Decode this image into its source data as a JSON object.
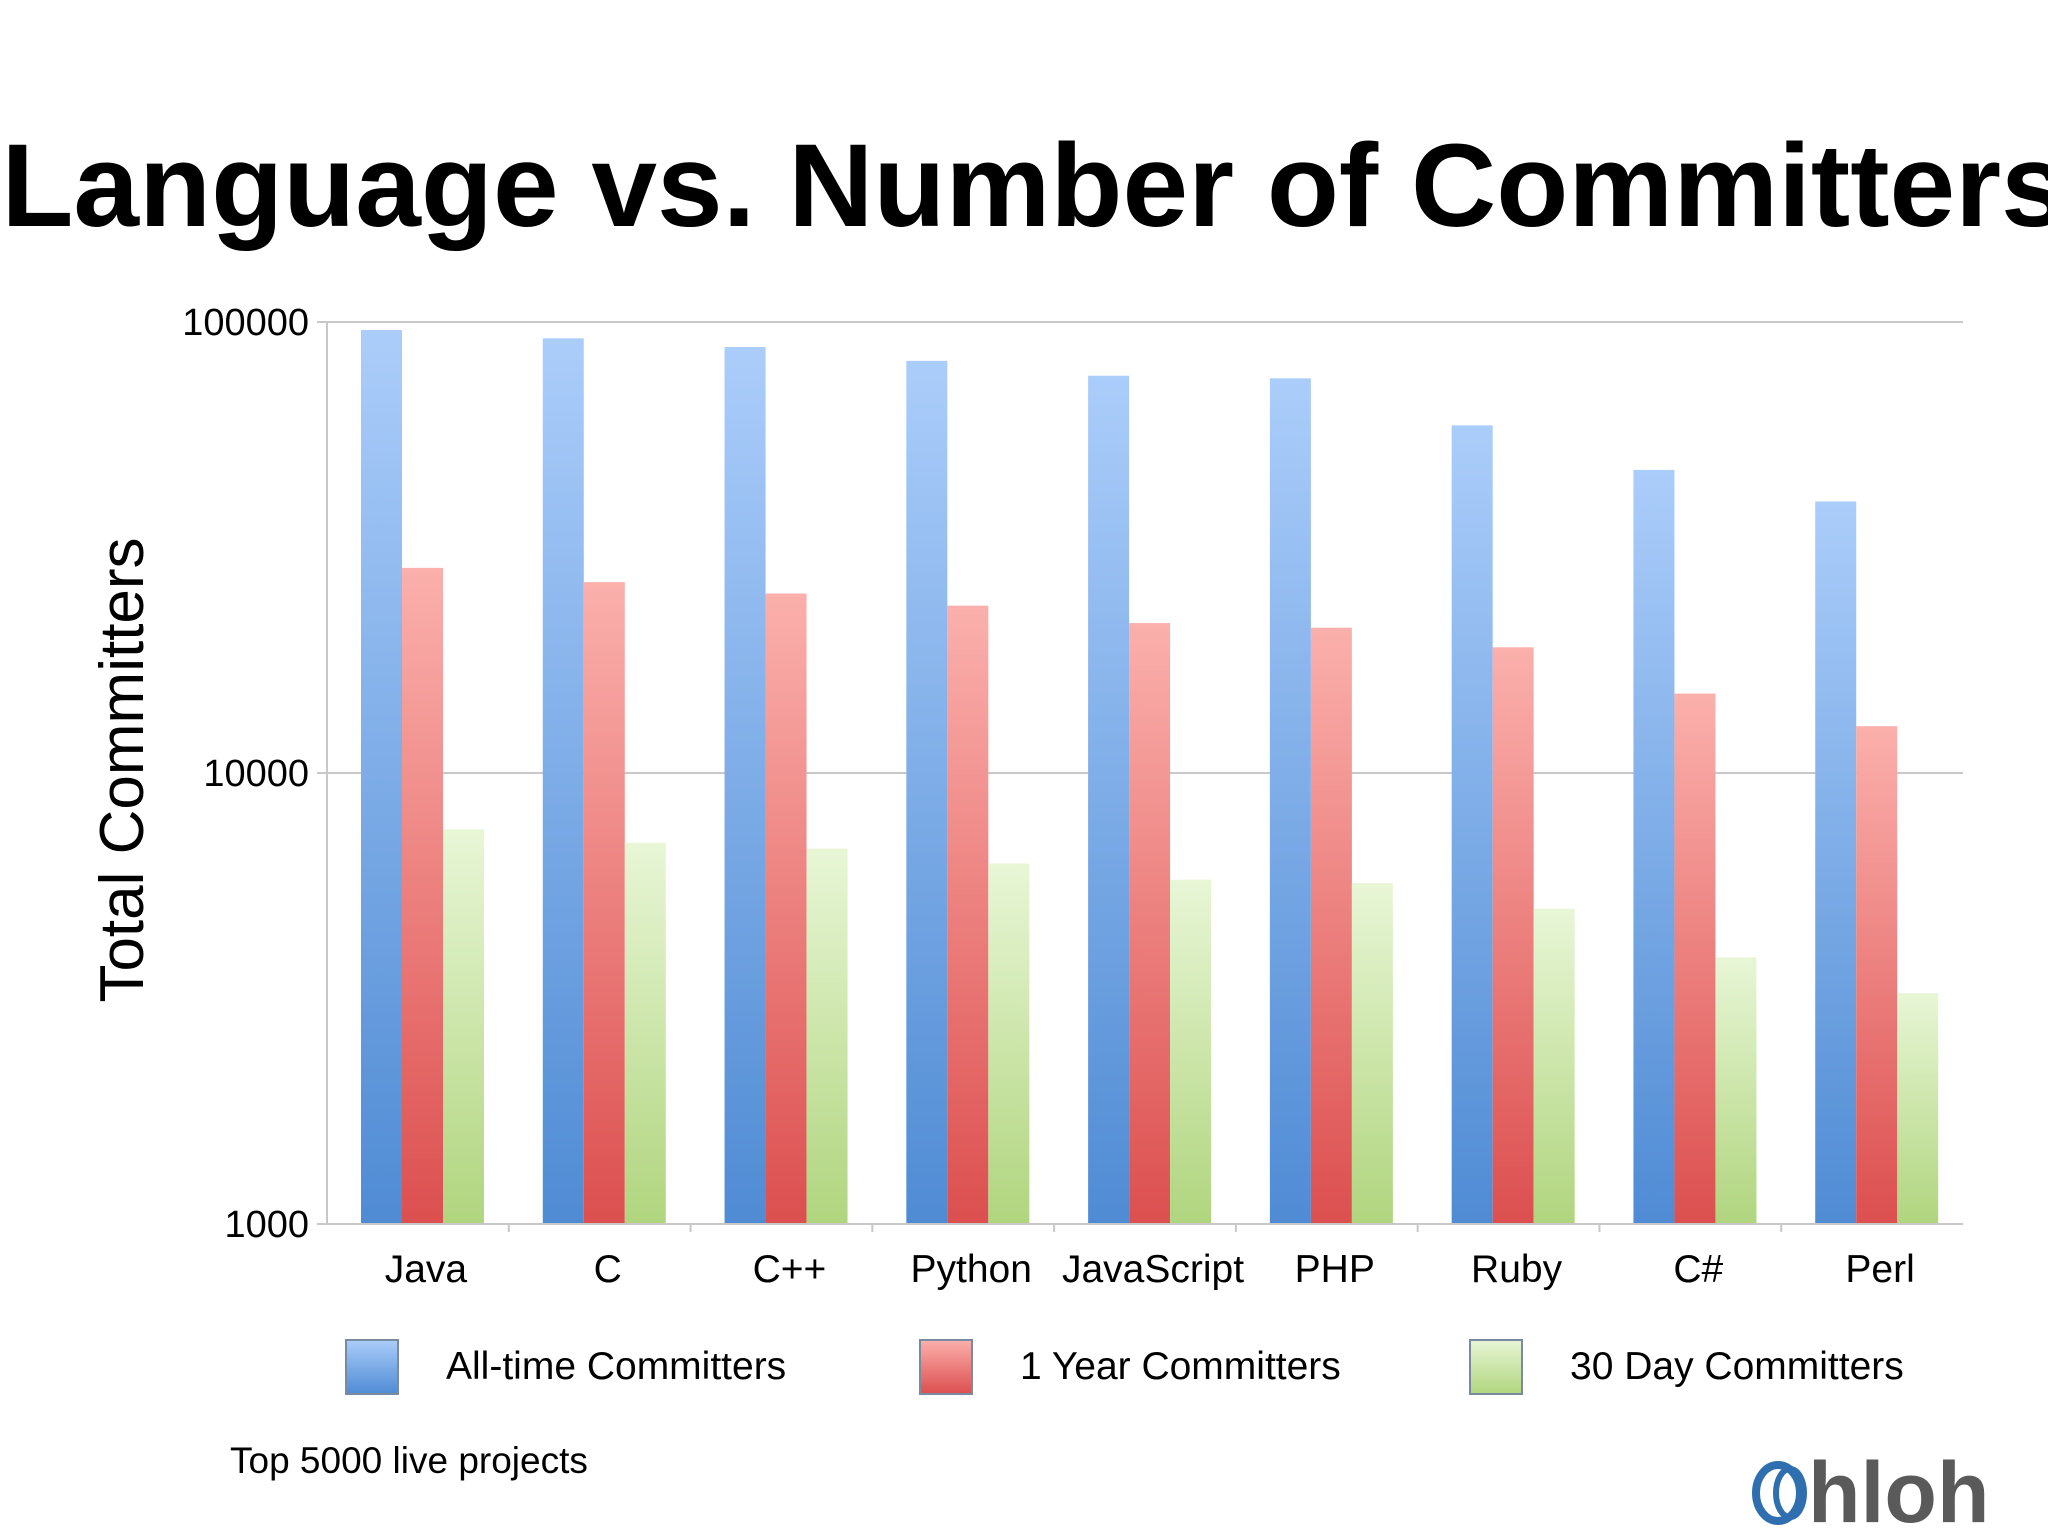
{
  "chart_data": {
    "type": "bar",
    "title": "Language vs. Number of Committers",
    "xlabel": "",
    "ylabel": "Total Committers",
    "yscale": "log",
    "ylim": [
      1000,
      100000
    ],
    "yticks": [
      "1000",
      "10000",
      "100000"
    ],
    "grid": true,
    "legend": "bottom",
    "categories": [
      "Java",
      "C",
      "C++",
      "Python",
      "JavaScript",
      "PHP",
      "Ruby",
      "C#",
      "Perl"
    ],
    "series": [
      {
        "name": "All-time Committers",
        "color": "#5b93d8",
        "values": [
          96000,
          92000,
          88000,
          82000,
          76000,
          75000,
          59000,
          47000,
          40000
        ]
      },
      {
        "name": "1 Year Committers",
        "color": "#e85e5e",
        "values": [
          28500,
          26500,
          25000,
          23500,
          21500,
          21000,
          19000,
          15000,
          12700
        ]
      },
      {
        "name": "30 Day Committers",
        "color": "#b7da88",
        "values": [
          7500,
          7000,
          6800,
          6300,
          5800,
          5700,
          5000,
          3900,
          3250
        ]
      }
    ]
  },
  "footnote": "Top 5000 live projects",
  "logo": "hloh"
}
